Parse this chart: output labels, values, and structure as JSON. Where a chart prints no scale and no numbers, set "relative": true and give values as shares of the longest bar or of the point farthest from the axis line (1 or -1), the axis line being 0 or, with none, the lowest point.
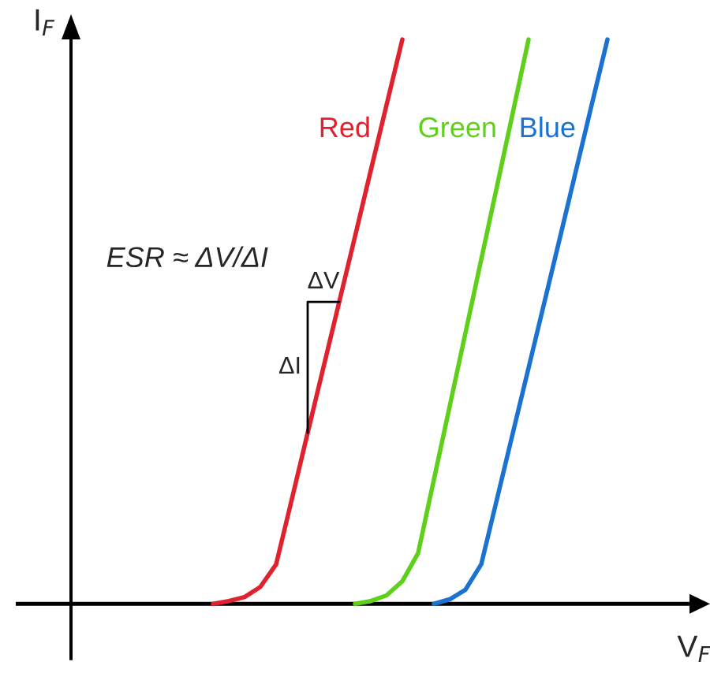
{
  "chart_data": {
    "type": "line",
    "relative": true,
    "xlabel": "V$_{F}$",
    "ylabel": "I$_{F}$",
    "categories": [
      null,
      null,
      null,
      null,
      null,
      null,
      null,
      null,
      null,
      null,
      null,
      null,
      null,
      null,
      null,
      null,
      null,
      null,
      null,
      null,
      null,
      null,
      null,
      null,
      null,
      null,
      null,
      null,
      null,
      null,
      null,
      null,
      null,
      null,
      null,
      null,
      null,
      null,
      null,
      null,
      null
    ],
    "series": [
      {
        "name": "Red",
        "color": "#e0212e",
        "values": [
          null,
          null,
          null,
          null,
          null,
          null,
          null,
          null,
          null,
          0,
          0.005,
          0.012,
          0.03,
          0.07,
          0.186,
          0.303,
          0.419,
          0.535,
          0.651,
          0.768,
          0.884,
          1.0,
          null,
          null,
          null,
          null,
          null,
          null,
          null,
          null,
          null,
          null,
          null,
          null,
          null,
          null,
          null,
          null,
          null,
          null,
          null
        ]
      },
      {
        "name": "Green",
        "color": "#5fcf1a",
        "values": [
          null,
          null,
          null,
          null,
          null,
          null,
          null,
          null,
          null,
          null,
          null,
          null,
          null,
          null,
          null,
          null,
          null,
          null,
          0,
          0.005,
          0.015,
          0.04,
          0.09,
          0.22,
          0.35,
          0.48,
          0.61,
          0.74,
          0.87,
          1.0,
          null,
          null,
          null,
          null,
          null,
          null,
          null,
          null,
          null,
          null,
          null
        ]
      },
      {
        "name": "Blue",
        "color": "#1a73d0",
        "values": [
          null,
          null,
          null,
          null,
          null,
          null,
          null,
          null,
          null,
          null,
          null,
          null,
          null,
          null,
          null,
          null,
          null,
          null,
          null,
          null,
          null,
          null,
          null,
          0,
          0.008,
          0.025,
          0.07,
          0.186,
          0.302,
          0.418,
          0.534,
          0.65,
          0.767,
          0.884,
          1.0,
          null,
          null,
          null,
          null,
          null,
          null
        ]
      }
    ],
    "annotations": [
      "ESR ≈ ΔV/ΔI",
      "ΔV",
      "ΔI"
    ],
    "grid": false,
    "legend": false,
    "marker": "none",
    "line_style": "solid"
  }
}
